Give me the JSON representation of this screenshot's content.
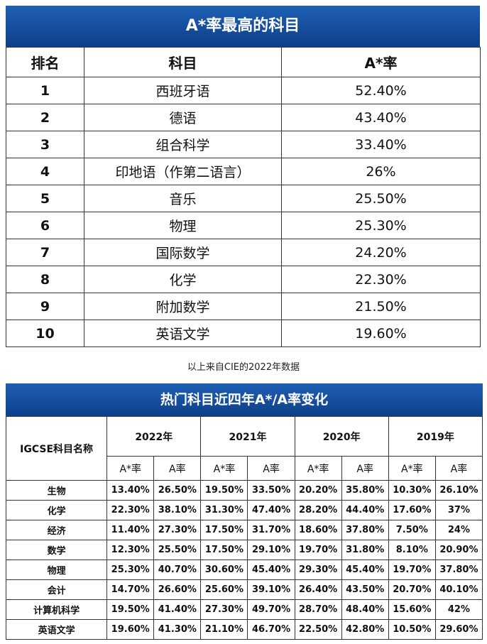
{
  "table1": {
    "title": "A*率最高的科目",
    "header": [
      "排名",
      "科目",
      "A*率"
    ],
    "rows": [
      [
        "1",
        "西班牙语",
        "52.40%"
      ],
      [
        "2",
        "德语",
        "43.40%"
      ],
      [
        "3",
        "组合科学",
        "33.40%"
      ],
      [
        "4",
        "印地语（作第二语言）",
        "26%"
      ],
      [
        "5",
        "音乐",
        "25.50%"
      ],
      [
        "6",
        "物理",
        "25.30%"
      ],
      [
        "7",
        "国际数学",
        "24.20%"
      ],
      [
        "8",
        "化学",
        "22.30%"
      ],
      [
        "9",
        "附加数学",
        "21.50%"
      ],
      [
        "10",
        "英语文学",
        "19.60%"
      ]
    ]
  },
  "caption": "以上来自CIE的2022年数据",
  "table2": {
    "title": "热门科目近四年A*/A率变化",
    "name_header": "IGCSE科目名称",
    "years": [
      "2022年",
      "2021年",
      "2020年",
      "2019年"
    ],
    "subheaders": [
      "A*率",
      "A率",
      "A*率",
      "A率",
      "A*率",
      "A率",
      "A*率",
      "A率"
    ],
    "rows": [
      [
        "生物",
        "13.40%",
        "26.50%",
        "19.50%",
        "33.50%",
        "20.20%",
        "35.80%",
        "10.30%",
        "26.10%"
      ],
      [
        "化学",
        "22.30%",
        "38.10%",
        "31.30%",
        "47.40%",
        "28.20%",
        "44.40%",
        "17.60%",
        "37%"
      ],
      [
        "经济",
        "11.40%",
        "27.30%",
        "17.50%",
        "31.70%",
        "18.60%",
        "37.80%",
        "7.50%",
        "24%"
      ],
      [
        "数学",
        "12.30%",
        "25.50%",
        "17.50%",
        "29.10%",
        "19.70%",
        "31.80%",
        "8.10%",
        "20.90%"
      ],
      [
        "物理",
        "25.30%",
        "40.70%",
        "30.60%",
        "45.40%",
        "29.30%",
        "45.40%",
        "19.70%",
        "37.80%"
      ],
      [
        "会计",
        "14.70%",
        "26.60%",
        "25.60%",
        "39.10%",
        "26.40%",
        "43.50%",
        "20.70%",
        "40.10%"
      ],
      [
        "计算机科学",
        "19.50%",
        "41.40%",
        "27.30%",
        "49.70%",
        "28.70%",
        "48.40%",
        "15.60%",
        "42%"
      ],
      [
        "英语文学",
        "19.60%",
        "41.30%",
        "21.10%",
        "46.70%",
        "22.50%",
        "42.80%",
        "10.50%",
        "29.60%"
      ]
    ]
  }
}
